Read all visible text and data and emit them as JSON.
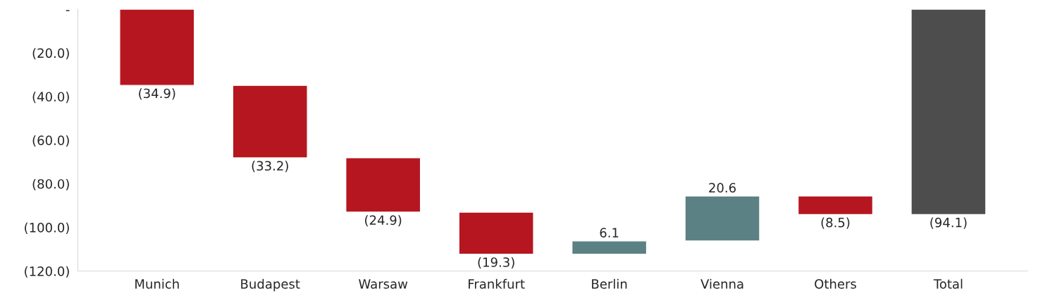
{
  "chart_data": {
    "type": "bar",
    "categories": [
      "Munich",
      "Budapest",
      "Warsaw",
      "Frankfurt",
      "Berlin",
      "Vienna",
      "Others",
      "Total"
    ],
    "values": [
      -34.9,
      -33.2,
      -24.9,
      -19.3,
      6.1,
      20.6,
      -8.5,
      -94.1
    ],
    "base": [
      0,
      -34.9,
      -68.1,
      -93.0,
      -112.3,
      -106.2,
      -85.6,
      0
    ],
    "colors": [
      "#b5161f",
      "#b5161f",
      "#b5161f",
      "#b5161f",
      "#5b8184",
      "#5b8184",
      "#b5161f",
      "#4d4d4d"
    ],
    "value_labels": [
      "(34.9)",
      "(33.2)",
      "(24.9)",
      "(19.3)",
      "6.1",
      "20.6",
      "(8.5)",
      "(94.1)"
    ],
    "ylim": [
      -120,
      0
    ],
    "yticks": [
      {
        "value": 0,
        "label": "-"
      },
      {
        "value": -20,
        "label": "(20.0)"
      },
      {
        "value": -40,
        "label": "(40.0)"
      },
      {
        "value": -60,
        "label": "(60.0)"
      },
      {
        "value": -80,
        "label": "(80.0)"
      },
      {
        "value": -100,
        "label": "(100.0)"
      },
      {
        "value": -120,
        "label": "(120.0)"
      }
    ],
    "grid": false,
    "legend": false
  }
}
